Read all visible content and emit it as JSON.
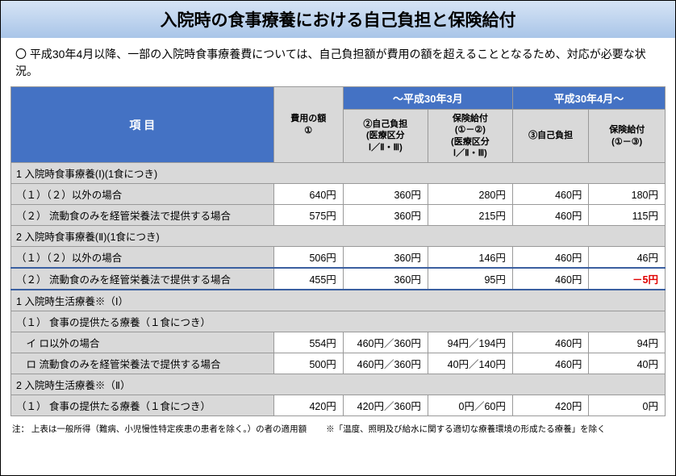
{
  "title": "入院時の食事療養における自己負担と保険給付",
  "intro": "〇 平成30年4月以降、一部の入院時食事療養費については、自己負担額が費用の額を超えることとなるため、対応が必要な状況。",
  "headers": {
    "item": "項 目",
    "period1": "～平成30年3月",
    "period2": "平成30年4月～",
    "cost": "費用の額\n①",
    "self1": "②自己負担\n(医療区分\nⅠ／Ⅱ・Ⅲ)",
    "benefit1": "保険給付\n(①－②)\n(医療区分\nⅠ／Ⅱ・Ⅲ)",
    "self2": "③自己負担",
    "benefit2": "保険給付\n(①－③)"
  },
  "rows": [
    {
      "type": "section",
      "label": "1 入院時食事療養(Ⅰ)(1食につき)"
    },
    {
      "type": "data",
      "label": "（１）（２）以外の場合",
      "vals": [
        "640円",
        "360円",
        "280円",
        "460円",
        "180円"
      ]
    },
    {
      "type": "data",
      "label": "（２） 流動食のみを経管栄養法で提供する場合",
      "vals": [
        "575円",
        "360円",
        "215円",
        "460円",
        "115円"
      ]
    },
    {
      "type": "section",
      "label": "2 入院時食事療養(Ⅱ)(1食につき)"
    },
    {
      "type": "data",
      "label": "（１）（２）以外の場合",
      "vals": [
        "506円",
        "360円",
        "146円",
        "460円",
        "46円"
      ]
    },
    {
      "type": "data",
      "label": "（２） 流動食のみを経管栄養法で提供する場合",
      "vals": [
        "455円",
        "360円",
        "95円",
        "460円",
        "－5円"
      ],
      "highlight": true,
      "negCol": 4
    },
    {
      "type": "section",
      "label": "1 入院時生活療養※（Ⅰ）"
    },
    {
      "type": "section",
      "label": "（１） 食事の提供たる療養（１食につき）"
    },
    {
      "type": "data",
      "label": "　イ ロ以外の場合",
      "vals": [
        "554円",
        "460円／360円",
        "94円／194円",
        "460円",
        "94円"
      ]
    },
    {
      "type": "data",
      "label": "　ロ 流動食のみを経管栄養法で提供する場合",
      "vals": [
        "500円",
        "460円／360円",
        "40円／140円",
        "460円",
        "40円"
      ]
    },
    {
      "type": "section",
      "label": "2 入院時生活療養※（Ⅱ）"
    },
    {
      "type": "data",
      "label": "（１） 食事の提供たる療養（１食につき）",
      "vals": [
        "420円",
        "420円／360円",
        "0円／60円",
        "420円",
        "0円"
      ]
    }
  ],
  "footnote1": "注： 上表は一般所得（難病、小児慢性特定疾患の患者を除く。）の者の適用額",
  "footnote2": "※「温度、照明及び給水に関する適切な療養環境の形成たる療養」を除く"
}
